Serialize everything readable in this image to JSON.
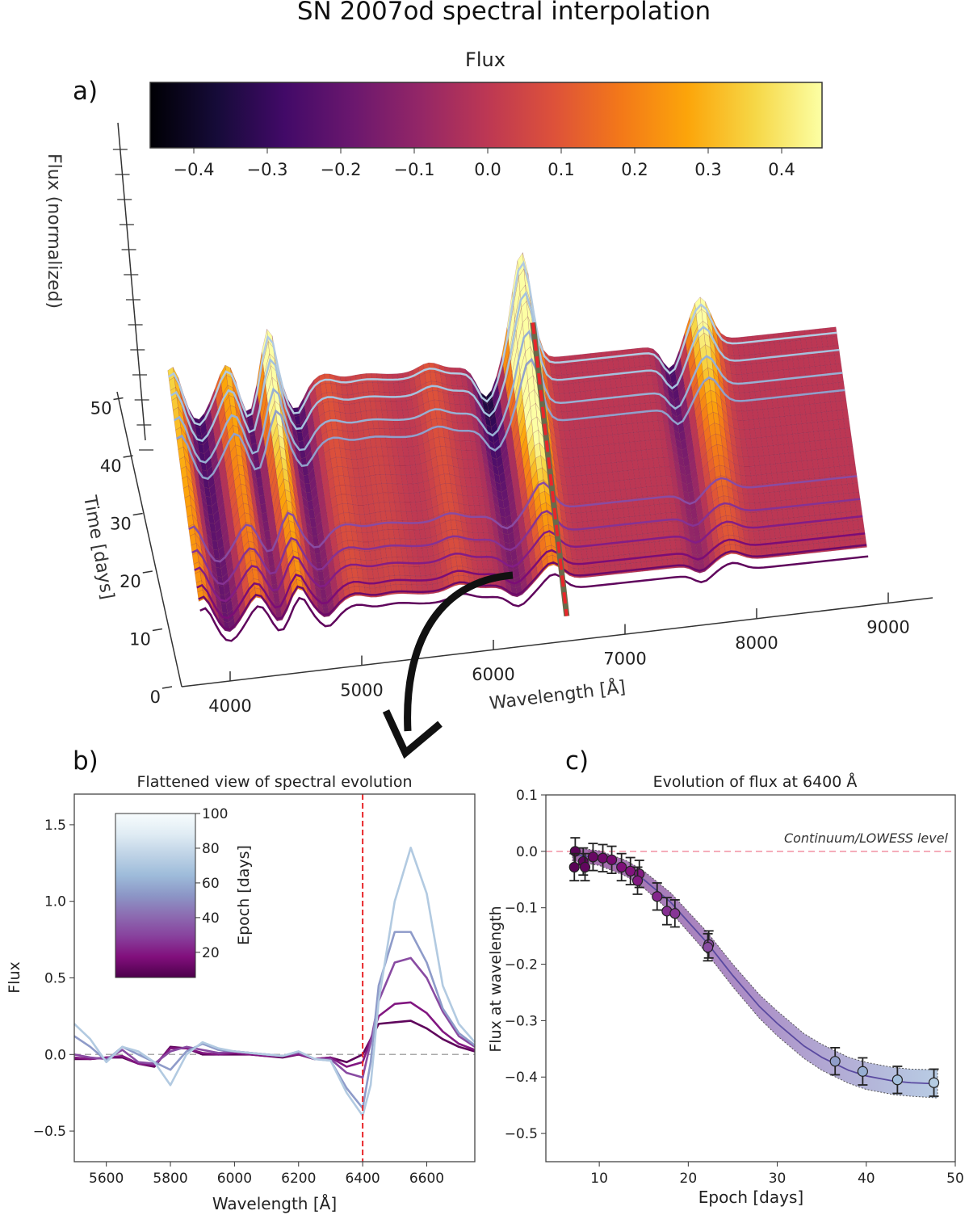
{
  "figure": {
    "title": "SN 2007od spectral interpolation",
    "panel_labels": [
      "a)",
      "b)",
      "c)"
    ]
  },
  "chart_data": [
    {
      "panel": "a)",
      "type": "surface3d",
      "colorbar": {
        "label": "Flux",
        "colormap": "inferno",
        "range": [
          -0.45,
          0.45
        ],
        "ticks": [
          "−0.4",
          "−0.3",
          "−0.2",
          "−0.1",
          "0.0",
          "0.1",
          "0.2",
          "0.3",
          "0.4"
        ],
        "tick_values": [
          -0.4,
          -0.3,
          -0.2,
          -0.1,
          0.0,
          0.1,
          0.2,
          0.3,
          0.4
        ]
      },
      "xlabel": "Wavelength [Å]",
      "x_ticks": [
        4000,
        5000,
        6000,
        7000,
        8000,
        9000
      ],
      "ylabel": "Time [days]",
      "y_ticks": [
        0,
        10,
        20,
        30,
        40,
        50
      ],
      "zlabel": "Flux (normalized)",
      "highlight_wavelength": 6400,
      "highlight_color": "#e8262a"
    },
    {
      "panel": "b)",
      "type": "line",
      "title": "Flattened view of spectral evolution",
      "xlabel": "Wavelength [Å]",
      "ylabel": "Flux",
      "xlim": [
        5500,
        6750
      ],
      "ylim": [
        -0.7,
        1.7
      ],
      "x_ticks": [
        5600,
        5800,
        6000,
        6200,
        6400,
        6600
      ],
      "y_ticks": [
        -0.5,
        0.0,
        0.5,
        1.0,
        1.5
      ],
      "y_tick_labels": [
        "−0.5",
        "0.0",
        "0.5",
        "1.0",
        "1.5"
      ],
      "vline": 6400,
      "hline": 0.0,
      "colorbar": {
        "label": "Epoch [days]",
        "range": [
          5.5,
          100
        ],
        "ticks": [
          20,
          40,
          60,
          80,
          100
        ]
      },
      "wavelength_grid": [
        5500,
        5550,
        5600,
        5650,
        5700,
        5750,
        5800,
        5850,
        5900,
        5950,
        6000,
        6050,
        6100,
        6150,
        6200,
        6250,
        6300,
        6350,
        6400,
        6425,
        6450,
        6500,
        6550,
        6600,
        6650,
        6700,
        6750
      ],
      "series": [
        {
          "epoch": 8,
          "values": [
            -0.03,
            -0.03,
            -0.02,
            -0.02,
            -0.06,
            -0.08,
            0.05,
            0.04,
            0.0,
            0.0,
            0.0,
            0.0,
            -0.01,
            -0.02,
            0.0,
            -0.03,
            -0.02,
            -0.05,
            0.0,
            0.1,
            0.2,
            0.21,
            0.22,
            0.17,
            0.1,
            0.05,
            0.02
          ]
        },
        {
          "epoch": 14,
          "values": [
            -0.02,
            -0.03,
            -0.02,
            -0.01,
            -0.06,
            -0.07,
            0.04,
            0.04,
            0.01,
            0.0,
            0.01,
            0.0,
            -0.01,
            -0.01,
            0.0,
            -0.03,
            -0.02,
            -0.08,
            -0.05,
            0.1,
            0.25,
            0.33,
            0.34,
            0.27,
            0.15,
            0.07,
            0.03
          ]
        },
        {
          "epoch": 22,
          "values": [
            0.0,
            -0.02,
            -0.03,
            0.03,
            -0.05,
            -0.06,
            0.02,
            0.05,
            0.03,
            0.01,
            0.02,
            0.01,
            0.0,
            -0.01,
            0.01,
            -0.03,
            -0.03,
            -0.12,
            -0.15,
            0.08,
            0.35,
            0.6,
            0.63,
            0.5,
            0.28,
            0.12,
            0.05
          ]
        },
        {
          "epoch": 36,
          "values": [
            0.12,
            0.05,
            -0.04,
            0.05,
            0.0,
            -0.05,
            -0.1,
            0.02,
            0.07,
            0.03,
            0.02,
            0.01,
            0.0,
            -0.01,
            0.02,
            -0.03,
            -0.04,
            -0.22,
            -0.35,
            -0.05,
            0.45,
            0.8,
            0.8,
            0.6,
            0.3,
            0.14,
            0.06
          ]
        },
        {
          "epoch": 47,
          "values": [
            0.2,
            0.1,
            -0.05,
            0.05,
            0.02,
            -0.05,
            -0.2,
            0.0,
            0.08,
            0.04,
            0.02,
            0.01,
            0.0,
            -0.01,
            0.02,
            -0.03,
            -0.04,
            -0.25,
            -0.4,
            -0.2,
            0.35,
            1.0,
            1.35,
            1.05,
            0.45,
            0.2,
            0.08
          ]
        }
      ]
    },
    {
      "panel": "c)",
      "type": "scatter",
      "title": "Evolution of flux at 6400 Å",
      "xlabel": "Epoch [days]",
      "ylabel": "Flux at wavelength",
      "xlim": [
        4,
        50
      ],
      "ylim": [
        -0.55,
        0.1
      ],
      "x_ticks": [
        10,
        20,
        30,
        40,
        50
      ],
      "y_ticks": [
        0.1,
        0.0,
        -0.1,
        -0.2,
        -0.3,
        -0.4,
        -0.5
      ],
      "y_tick_labels": [
        "0.1",
        "0.0",
        "−0.1",
        "−0.2",
        "−0.3",
        "−0.4",
        "−0.5"
      ],
      "hline": {
        "value": 0.0,
        "label": "Continuum/LOWESS level",
        "color": "#f4a0b0"
      },
      "points": {
        "x": [
          7.3,
          7.2,
          8.2,
          8.4,
          9.3,
          10.4,
          11.4,
          12.5,
          13.5,
          14.5,
          14.3,
          16.5,
          17.6,
          18.5,
          22.3,
          22.2,
          36.5,
          39.6,
          43.5,
          47.6
        ],
        "y": [
          0.0,
          -0.028,
          -0.018,
          -0.028,
          -0.01,
          -0.012,
          -0.015,
          -0.028,
          -0.035,
          -0.04,
          -0.052,
          -0.08,
          -0.106,
          -0.11,
          -0.165,
          -0.17,
          -0.372,
          -0.39,
          -0.405,
          -0.41
        ],
        "yerr": 0.024
      },
      "fit": {
        "x": [
          7,
          10,
          13,
          15,
          18,
          20,
          22,
          25,
          28,
          30,
          33,
          35,
          38,
          40,
          43,
          45,
          48
        ],
        "y": [
          -0.005,
          -0.012,
          -0.03,
          -0.05,
          -0.09,
          -0.125,
          -0.16,
          -0.22,
          -0.275,
          -0.305,
          -0.345,
          -0.365,
          -0.388,
          -0.398,
          -0.407,
          -0.41,
          -0.412
        ],
        "band": [
          0.012,
          0.013,
          0.014,
          0.015,
          0.017,
          0.018,
          0.019,
          0.02,
          0.021,
          0.022,
          0.022,
          0.023,
          0.023,
          0.024,
          0.024,
          0.024,
          0.025
        ]
      }
    }
  ]
}
